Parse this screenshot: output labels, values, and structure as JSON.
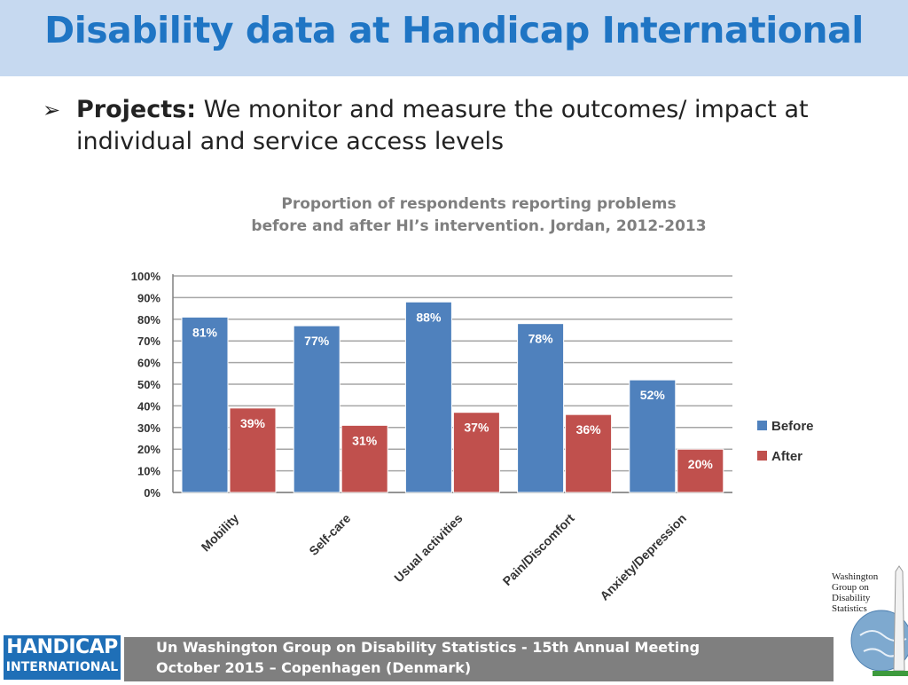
{
  "slide": {
    "title": "Disability data at Handicap International",
    "bullet_lead": "Projects:",
    "bullet_text": " We monitor and measure the outcomes/ impact at individual and service access levels"
  },
  "chart_data": {
    "type": "bar",
    "title_line1": "Proportion of respondents reporting problems",
    "title_line2": "before and after HI’s intervention. Jordan, 2012-2013",
    "categories": [
      "Mobility",
      "Self-care",
      "Usual activities",
      "Pain/Discomfort",
      "Anxiety/Depression"
    ],
    "series": [
      {
        "name": "Before",
        "color": "#4f81bd",
        "values": [
          81,
          77,
          88,
          78,
          52
        ],
        "labels": [
          "81%",
          "77%",
          "88%",
          "78%",
          "52%"
        ]
      },
      {
        "name": "After",
        "color": "#c0504d",
        "values": [
          39,
          31,
          37,
          36,
          20
        ],
        "labels": [
          "39%",
          "31%",
          "37%",
          "36%",
          "20%"
        ]
      }
    ],
    "ylim": [
      0,
      100
    ],
    "yticks": [
      "0%",
      "10%",
      "20%",
      "30%",
      "40%",
      "50%",
      "60%",
      "70%",
      "80%",
      "90%",
      "100%"
    ],
    "grid": true,
    "legend_position": "right"
  },
  "footer": {
    "line1": "Un Washington Group on Disability Statistics - 15th Annual Meeting",
    "line2": "October 2015 – Copenhagen (Denmark)"
  },
  "logos": {
    "hi_line1": "HANDICAP",
    "hi_line2": "INTERNATIONAL",
    "wg_text": "Washington Group on Disability Statistics"
  }
}
